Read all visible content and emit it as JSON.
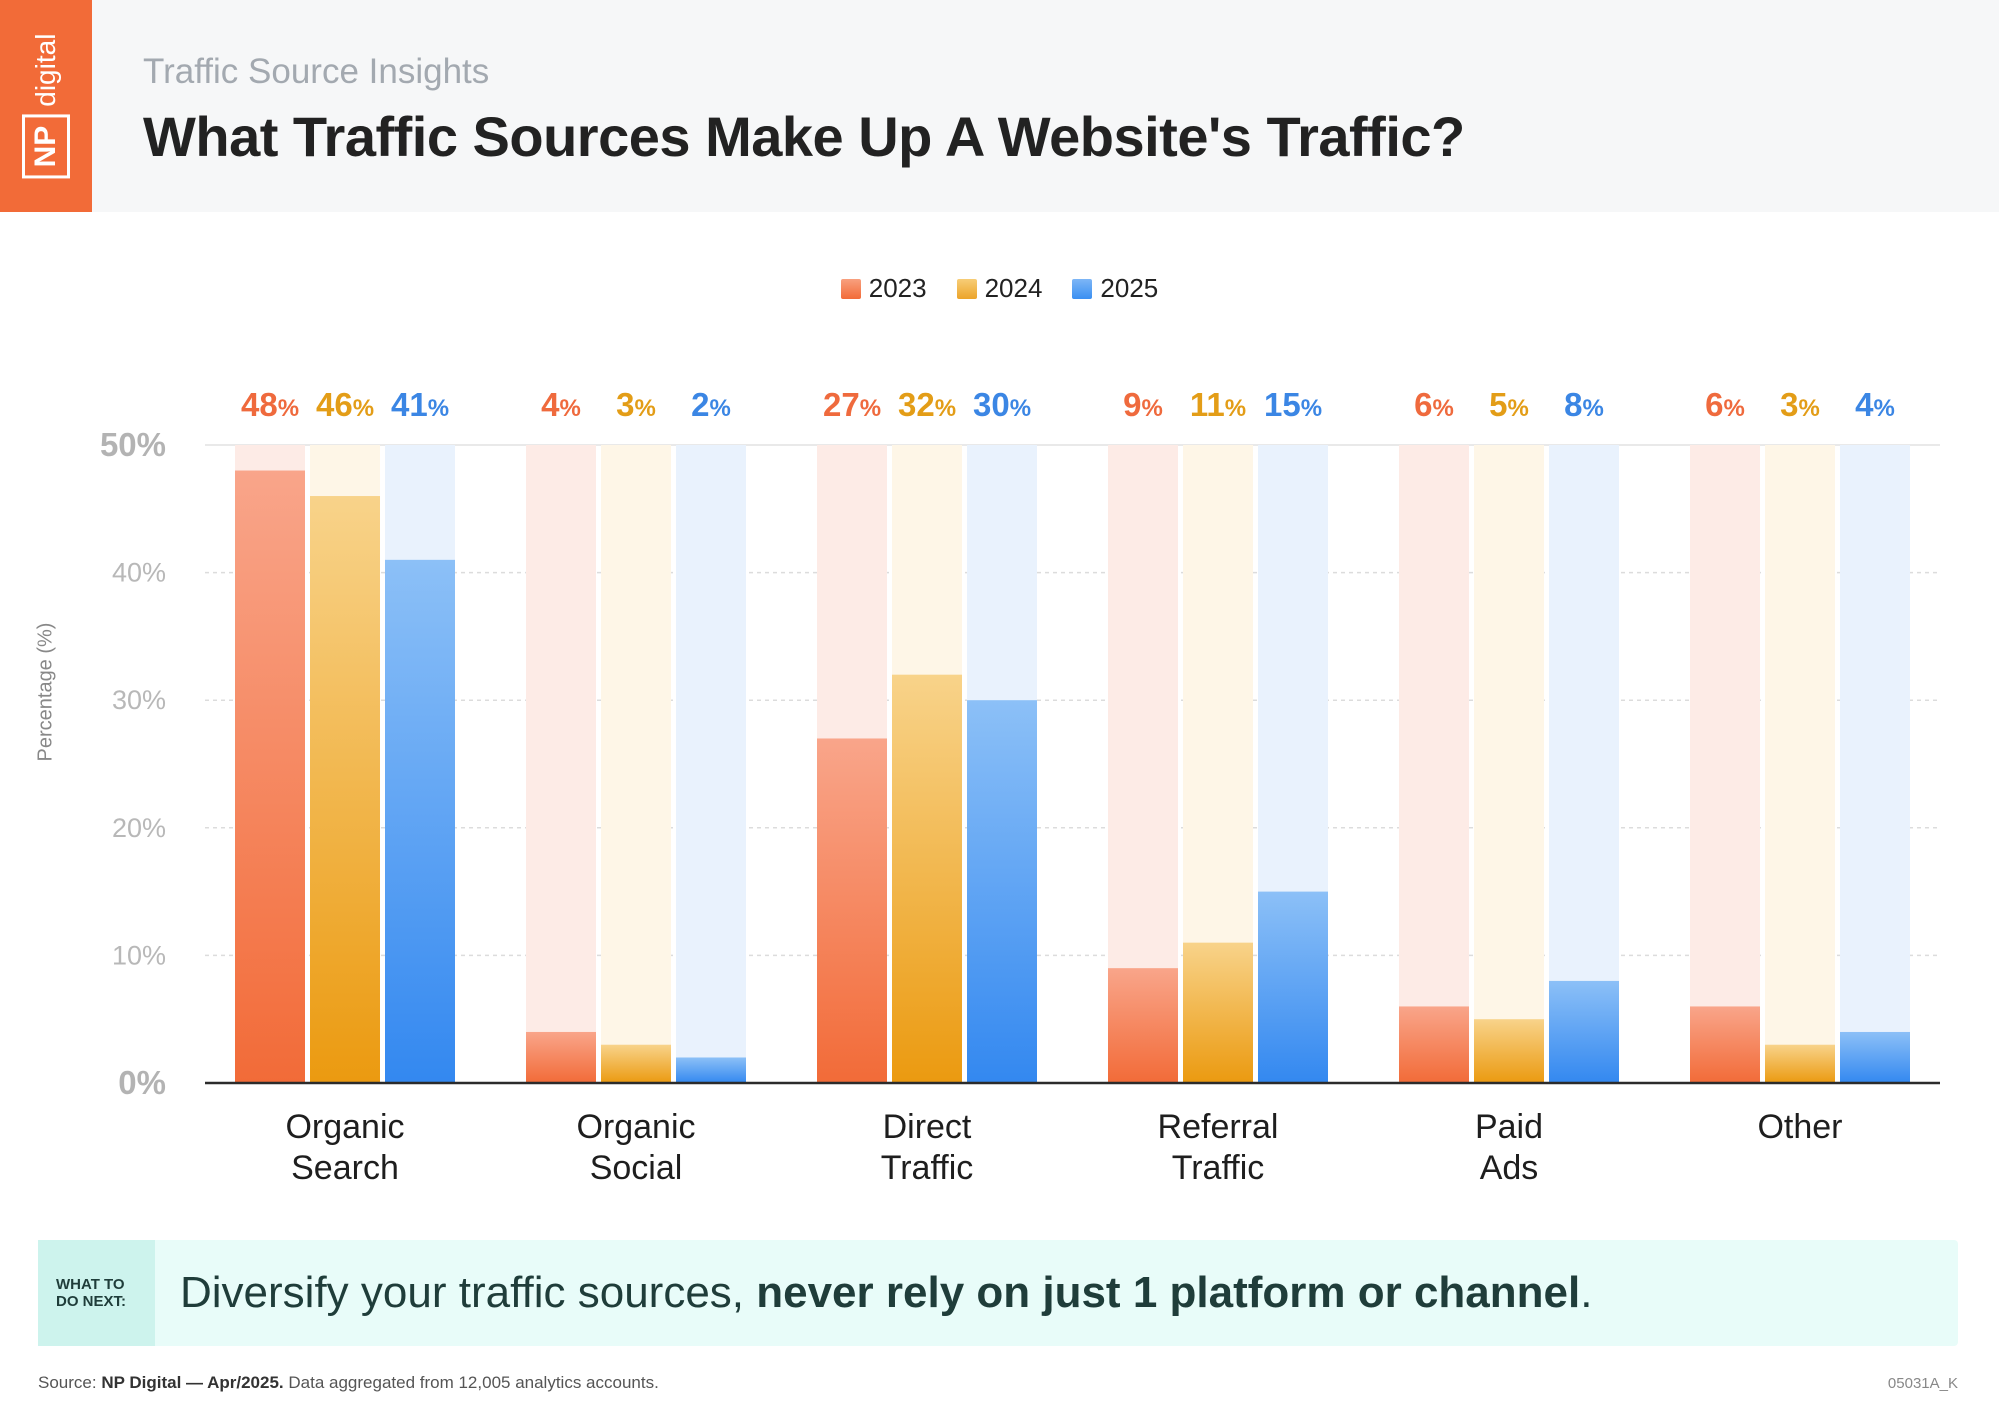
{
  "header": {
    "logo_np": "NP",
    "logo_digital": "digital",
    "subtitle": "Traffic Source Insights",
    "title": "What Traffic Sources Make Up A Website's Traffic?"
  },
  "colors": {
    "brand": "#f26b38",
    "series_2023": "#f26b38",
    "series_2024": "#eca42a",
    "series_2025": "#3a8ff2"
  },
  "chart_data": {
    "type": "bar",
    "categories": [
      [
        "Organic",
        "Search"
      ],
      [
        "Organic",
        "Social"
      ],
      [
        "Direct",
        "Traffic"
      ],
      [
        "Referral",
        "Traffic"
      ],
      [
        "Paid",
        "Ads"
      ],
      [
        "Other"
      ]
    ],
    "series": [
      {
        "name": "2023",
        "values": [
          48,
          4,
          27,
          9,
          6,
          6
        ]
      },
      {
        "name": "2024",
        "values": [
          46,
          3,
          32,
          11,
          5,
          3
        ]
      },
      {
        "name": "2025",
        "values": [
          41,
          2,
          30,
          15,
          8,
          4
        ]
      }
    ],
    "value_suffix": "%",
    "ylabel": "Percentage (%)",
    "ylim": [
      0,
      50
    ],
    "yticks": [
      0,
      10,
      20,
      30,
      40,
      50
    ],
    "ytick_labels": [
      "0%",
      "10%",
      "20%",
      "30%",
      "40%",
      "50%"
    ],
    "grid": true,
    "legend_position": "top-center"
  },
  "tip": {
    "label_line1": "WHAT TO",
    "label_line2": "DO NEXT:",
    "text_plain": "Diversify your traffic sources, ",
    "text_bold": "never rely on just 1 platform or channel",
    "text_end": "."
  },
  "footer": {
    "source_label": "Source: ",
    "source_bold": "NP Digital — Apr/2025.",
    "source_rest": " Data aggregated from 12,005 analytics accounts.",
    "code": "05031A_K"
  }
}
